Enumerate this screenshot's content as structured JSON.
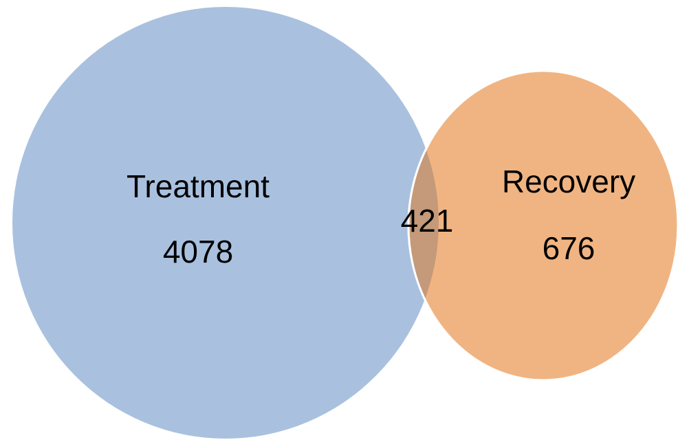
{
  "chart_data": {
    "type": "venn",
    "sets": [
      {
        "name": "Treatment",
        "value": 4078,
        "color": "#a9c1df"
      },
      {
        "name": "Recovery",
        "value": 676,
        "color": "#f0b482"
      }
    ],
    "intersection": {
      "value": 421,
      "color": "#c49a7a"
    }
  }
}
